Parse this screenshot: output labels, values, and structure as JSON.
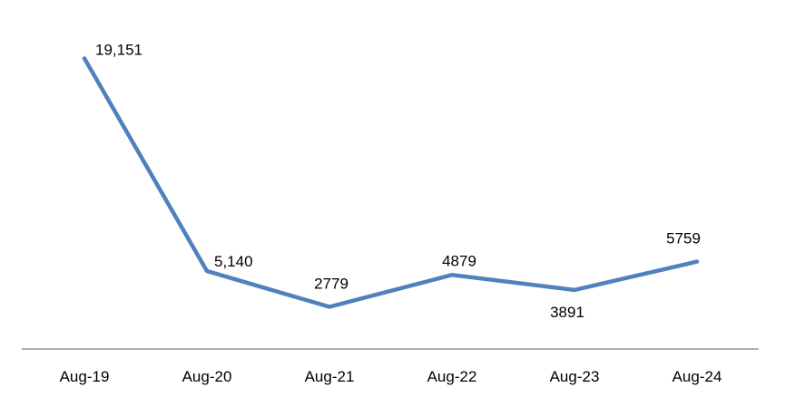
{
  "chart_data": {
    "type": "line",
    "categories": [
      "Aug-19",
      "Aug-20",
      "Aug-21",
      "Aug-22",
      "Aug-23",
      "Aug-24"
    ],
    "values": [
      19151,
      5140,
      2779,
      4879,
      3891,
      5759
    ],
    "data_labels": [
      "19,151",
      "5,140",
      "2779",
      "4879",
      "3891",
      "5759"
    ],
    "ylim": [
      0,
      23000
    ],
    "grid": false,
    "legend": "none",
    "line_color": "#4F81BD",
    "axis_color": "#7F7F7F"
  }
}
